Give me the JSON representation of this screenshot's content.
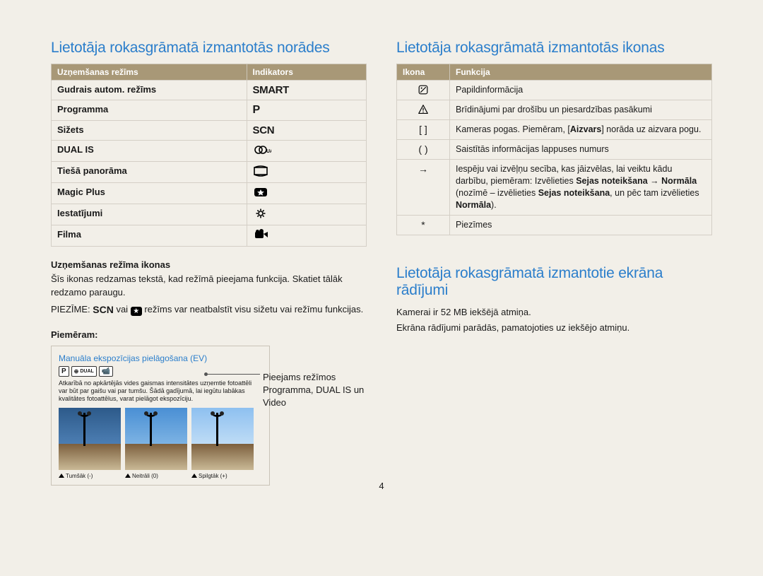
{
  "left": {
    "heading": "Lietotāja rokasgrāmatā izmantotās norādes",
    "table": {
      "col1": "Uzņemšanas režīms",
      "col2": "Indikators",
      "rows": [
        {
          "mode": "Gudrais autom. režīms",
          "ind_text": "SMART",
          "ind_class": "smart"
        },
        {
          "mode": "Programma",
          "ind_text": "P",
          "ind_class": "pmode"
        },
        {
          "mode": "Sižets",
          "ind_text": "SCN",
          "ind_class": "scn"
        },
        {
          "mode": "DUAL IS",
          "ind_icon": "dual"
        },
        {
          "mode": "Tiešā panorāma",
          "ind_icon": "pano"
        },
        {
          "mode": "Magic Plus",
          "ind_icon": "magic"
        },
        {
          "mode": "Iestatījumi",
          "ind_icon": "gear"
        },
        {
          "mode": "Filma",
          "ind_icon": "film"
        }
      ]
    },
    "mode_icons_head": "Uzņemšanas režīma ikonas",
    "mode_icons_body": "Šīs ikonas redzamas tekstā, kad režīmā pieejama funkcija. Skatiet tālāk redzamo paraugu.",
    "note_before": "PIEZĪME:",
    "note_mid": "vai",
    "note_after": "režīms var neatbalstīt visu sižetu vai režīmu funkcijas.",
    "example_label": "Piemēram:",
    "ex_title": "Manuāla ekspozīcijas pielāgošana (EV)",
    "ex_badge": "P",
    "ex_desc": "Atkarībā no apkārtējās vides gaismas intensitātes uzņemtie fotoattēli var būt par gaišu vai par tumšu. Šādā gadījumā, lai iegūtu labākas kvalitātes fotoattēlus, varat pielāgot ekspozīciju.",
    "captions": [
      "Tumšāk (-)",
      "Neitrāli (0)",
      "Spilgtāk (+)"
    ],
    "callout": "Pieejams režīmos Programma, DUAL IS un Video"
  },
  "right": {
    "heading1": "Lietotāja rokasgrāmatā izmantotās ikonas",
    "icon_table": {
      "col1": "Ikona",
      "col2": "Funkcija",
      "rows": [
        {
          "icon": "info",
          "text": "Papildinformācija"
        },
        {
          "icon": "warn",
          "text": "Brīdinājumi par drošību un piesardzības pasākumi"
        },
        {
          "icon": "[ ]",
          "text_pre": "Kameras pogas. Piemēram, [",
          "bold": "Aizvars",
          "text_post": "] norāda uz aizvara pogu."
        },
        {
          "icon": "( )",
          "text": "Saistītās informācijas lappuses numurs"
        },
        {
          "icon": "→",
          "text_pre": "Iespēju vai izvēļņu secība, kas jāizvēlas, lai veiktu kādu darbību, piemēram: Izvēlieties ",
          "b1": "Sejas noteikšana",
          "arrow": " → ",
          "b2": "Normāla",
          "paren": " (nozīmē – izvēlieties ",
          "b3": "Sejas noteikšana",
          "mid": ", un pēc tam izvēlieties ",
          "b4": "Normāla",
          "end": ")."
        },
        {
          "icon": "*",
          "text": "Piezīmes"
        }
      ]
    },
    "heading2": "Lietotāja rokasgrāmatā izmantotie ekrāna rādījumi",
    "screen1": "Kamerai ir 52 MB iekšējā atmiņa.",
    "screen2": "Ekrāna rādījumi parādās, pamatojoties uz iekšējo atmiņu."
  },
  "page_number": "4"
}
